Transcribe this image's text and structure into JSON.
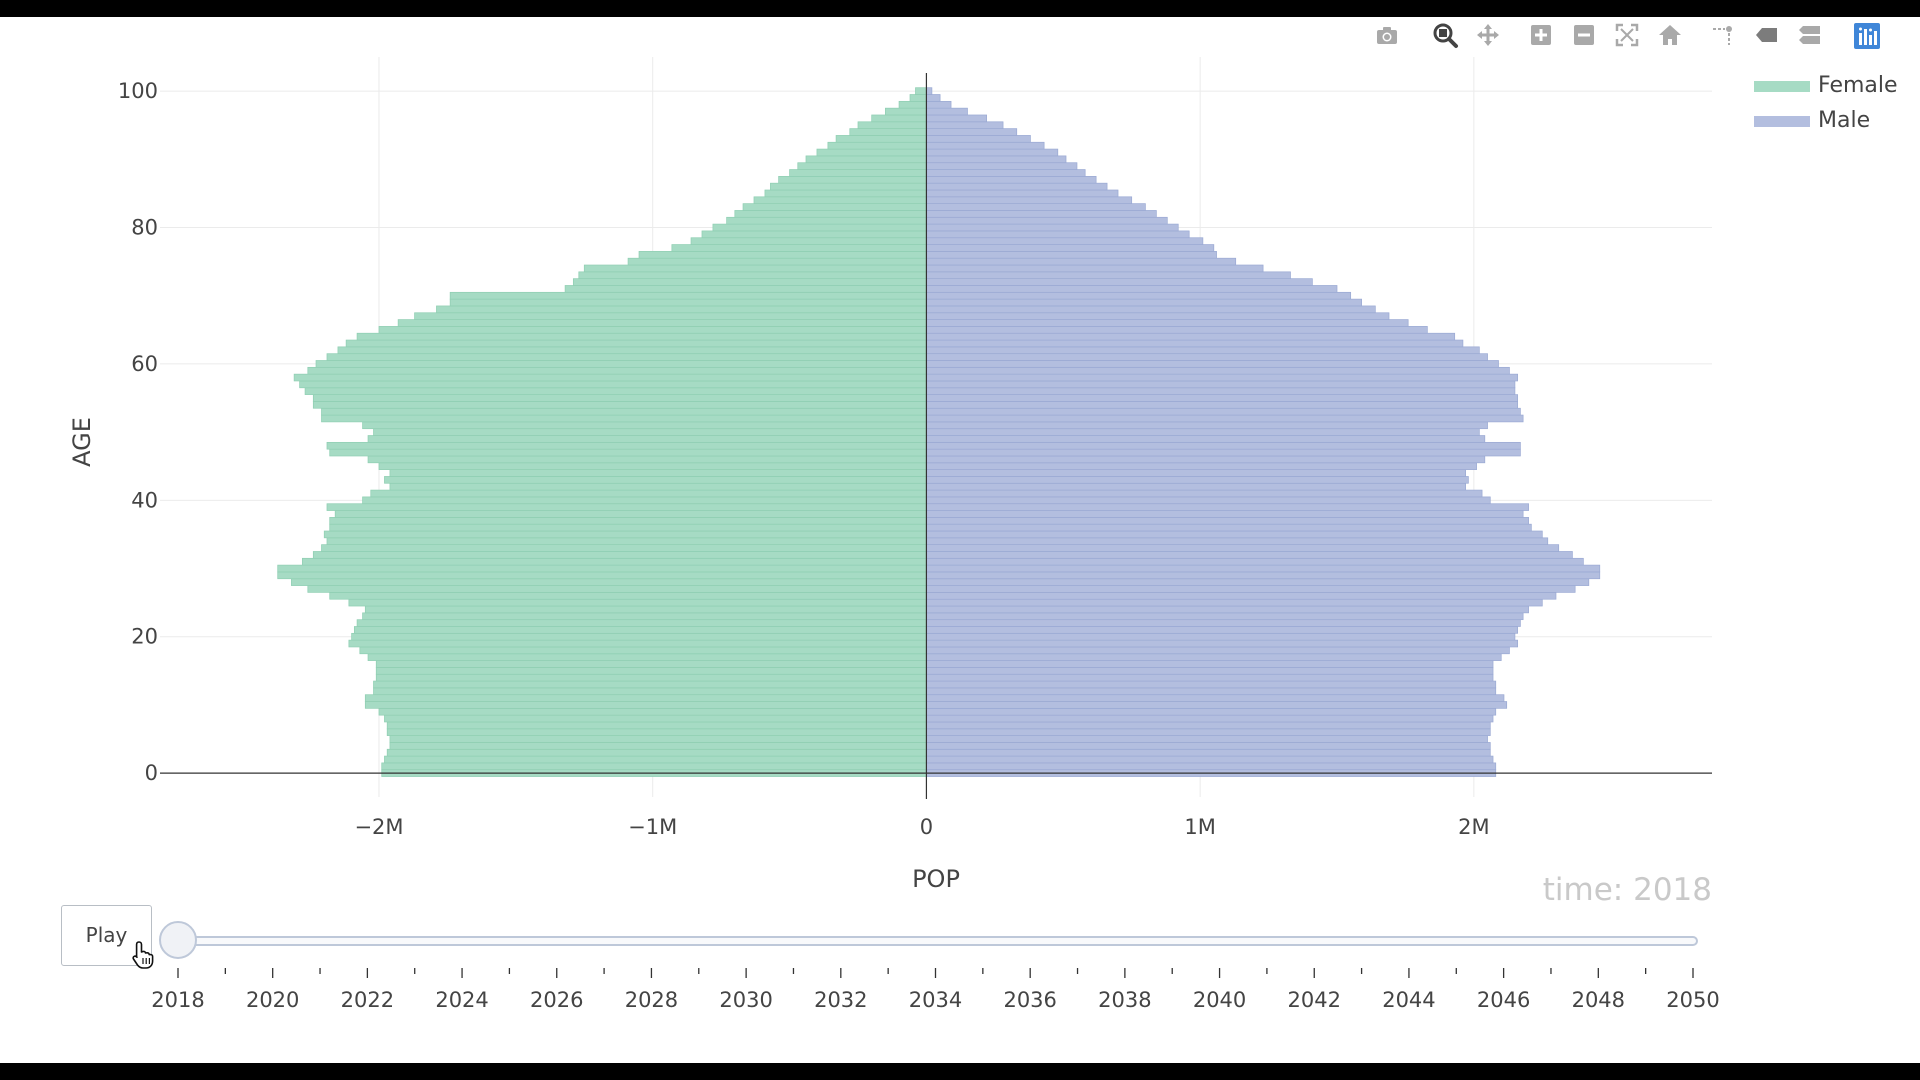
{
  "modebar": {
    "buttons": [
      {
        "name": "camera-icon"
      },
      {
        "name": "zoom-icon"
      },
      {
        "name": "pan-icon"
      },
      {
        "name": "zoom-in-icon"
      },
      {
        "name": "zoom-out-icon"
      },
      {
        "name": "autoscale-icon"
      },
      {
        "name": "home-icon"
      },
      {
        "name": "spike-lines-icon"
      },
      {
        "name": "hover-closest-icon"
      },
      {
        "name": "hover-compare-icon"
      },
      {
        "name": "plotly-logo-icon"
      }
    ]
  },
  "legend": {
    "items": [
      {
        "label": "Female",
        "color": "#a6dbc4"
      },
      {
        "label": "Male",
        "color": "#b3bedf"
      }
    ]
  },
  "colors": {
    "female_fill": "#a6dbc4",
    "female_line": "#8fceb2",
    "male_fill": "#b3bedf",
    "male_line": "#9aa9d3",
    "grid": "#ebebeb",
    "axis_text": "#444444",
    "time_label": "#c9c9c9"
  },
  "slider": {
    "play_label": "Play",
    "current_label": "time: 2018",
    "labels": [
      "2018",
      "2020",
      "2022",
      "2024",
      "2026",
      "2028",
      "2030",
      "2032",
      "2034",
      "2036",
      "2038",
      "2040",
      "2042",
      "2044",
      "2046",
      "2048",
      "2050"
    ],
    "current_value": 2018
  },
  "chart_data": {
    "type": "bar",
    "orientation": "horizontal",
    "xlabel": "POP",
    "ylabel": "AGE",
    "xlim": [
      -2800000,
      2870000
    ],
    "ylim": [
      -3.5,
      105
    ],
    "x_tick_values": [
      -2000000,
      -1000000,
      0,
      1000000,
      2000000
    ],
    "x_tick_labels": [
      "−2M",
      "−1M",
      "0",
      "1M",
      "2M"
    ],
    "y_tick_values": [
      0,
      20,
      40,
      60,
      80,
      100
    ],
    "y_tick_labels": [
      "0",
      "20",
      "40",
      "60",
      "80",
      "100"
    ],
    "grid": true,
    "legend_position": "top-right",
    "ages": [
      0,
      1,
      2,
      3,
      4,
      5,
      6,
      7,
      8,
      9,
      10,
      11,
      12,
      13,
      14,
      15,
      16,
      17,
      18,
      19,
      20,
      21,
      22,
      23,
      24,
      25,
      26,
      27,
      28,
      29,
      30,
      31,
      32,
      33,
      34,
      35,
      36,
      37,
      38,
      39,
      40,
      41,
      42,
      43,
      44,
      45,
      46,
      47,
      48,
      49,
      50,
      51,
      52,
      53,
      54,
      55,
      56,
      57,
      58,
      59,
      60,
      61,
      62,
      63,
      64,
      65,
      66,
      67,
      68,
      69,
      70,
      71,
      72,
      73,
      74,
      75,
      76,
      77,
      78,
      79,
      80,
      81,
      82,
      83,
      84,
      85,
      86,
      87,
      88,
      89,
      90,
      91,
      92,
      93,
      94,
      95,
      96,
      97,
      98,
      99,
      100
    ],
    "series": [
      {
        "name": "Female",
        "values": [
          -1990000,
          -1990000,
          -1980000,
          -1970000,
          -1960000,
          -1960000,
          -1970000,
          -1970000,
          -1980000,
          -2000000,
          -2050000,
          -2050000,
          -2020000,
          -2020000,
          -2010000,
          -2010000,
          -2010000,
          -2040000,
          -2070000,
          -2110000,
          -2100000,
          -2090000,
          -2080000,
          -2060000,
          -2050000,
          -2110000,
          -2180000,
          -2260000,
          -2320000,
          -2370000,
          -2370000,
          -2280000,
          -2240000,
          -2210000,
          -2190000,
          -2200000,
          -2180000,
          -2180000,
          -2160000,
          -2190000,
          -2060000,
          -2030000,
          -1960000,
          -1980000,
          -1960000,
          -2000000,
          -2040000,
          -2180000,
          -2190000,
          -2040000,
          -2020000,
          -2060000,
          -2210000,
          -2210000,
          -2240000,
          -2240000,
          -2270000,
          -2290000,
          -2310000,
          -2260000,
          -2230000,
          -2190000,
          -2150000,
          -2120000,
          -2080000,
          -2000000,
          -1930000,
          -1870000,
          -1790000,
          -1740000,
          -1740000,
          -1320000,
          -1290000,
          -1270000,
          -1250000,
          -1090000,
          -1050000,
          -930000,
          -860000,
          -820000,
          -780000,
          -730000,
          -700000,
          -670000,
          -630000,
          -590000,
          -570000,
          -540000,
          -500000,
          -470000,
          -440000,
          -400000,
          -360000,
          -330000,
          -280000,
          -250000,
          -200000,
          -150000,
          -100000,
          -60000,
          -40000
        ]
      },
      {
        "name": "Male",
        "values": [
          2080000,
          2080000,
          2070000,
          2060000,
          2060000,
          2050000,
          2060000,
          2060000,
          2070000,
          2080000,
          2120000,
          2110000,
          2080000,
          2080000,
          2070000,
          2070000,
          2070000,
          2100000,
          2130000,
          2160000,
          2150000,
          2160000,
          2170000,
          2180000,
          2200000,
          2250000,
          2300000,
          2370000,
          2420000,
          2460000,
          2460000,
          2400000,
          2360000,
          2310000,
          2270000,
          2250000,
          2210000,
          2200000,
          2180000,
          2200000,
          2060000,
          2030000,
          1970000,
          1980000,
          1970000,
          2010000,
          2040000,
          2170000,
          2170000,
          2040000,
          2020000,
          2050000,
          2180000,
          2170000,
          2160000,
          2160000,
          2150000,
          2150000,
          2160000,
          2130000,
          2090000,
          2050000,
          2020000,
          1960000,
          1930000,
          1830000,
          1760000,
          1690000,
          1640000,
          1590000,
          1550000,
          1500000,
          1410000,
          1330000,
          1230000,
          1130000,
          1060000,
          1050000,
          1010000,
          960000,
          920000,
          880000,
          840000,
          800000,
          750000,
          700000,
          660000,
          620000,
          580000,
          550000,
          510000,
          480000,
          430000,
          380000,
          330000,
          280000,
          220000,
          150000,
          90000,
          50000,
          20000
        ]
      }
    ]
  }
}
